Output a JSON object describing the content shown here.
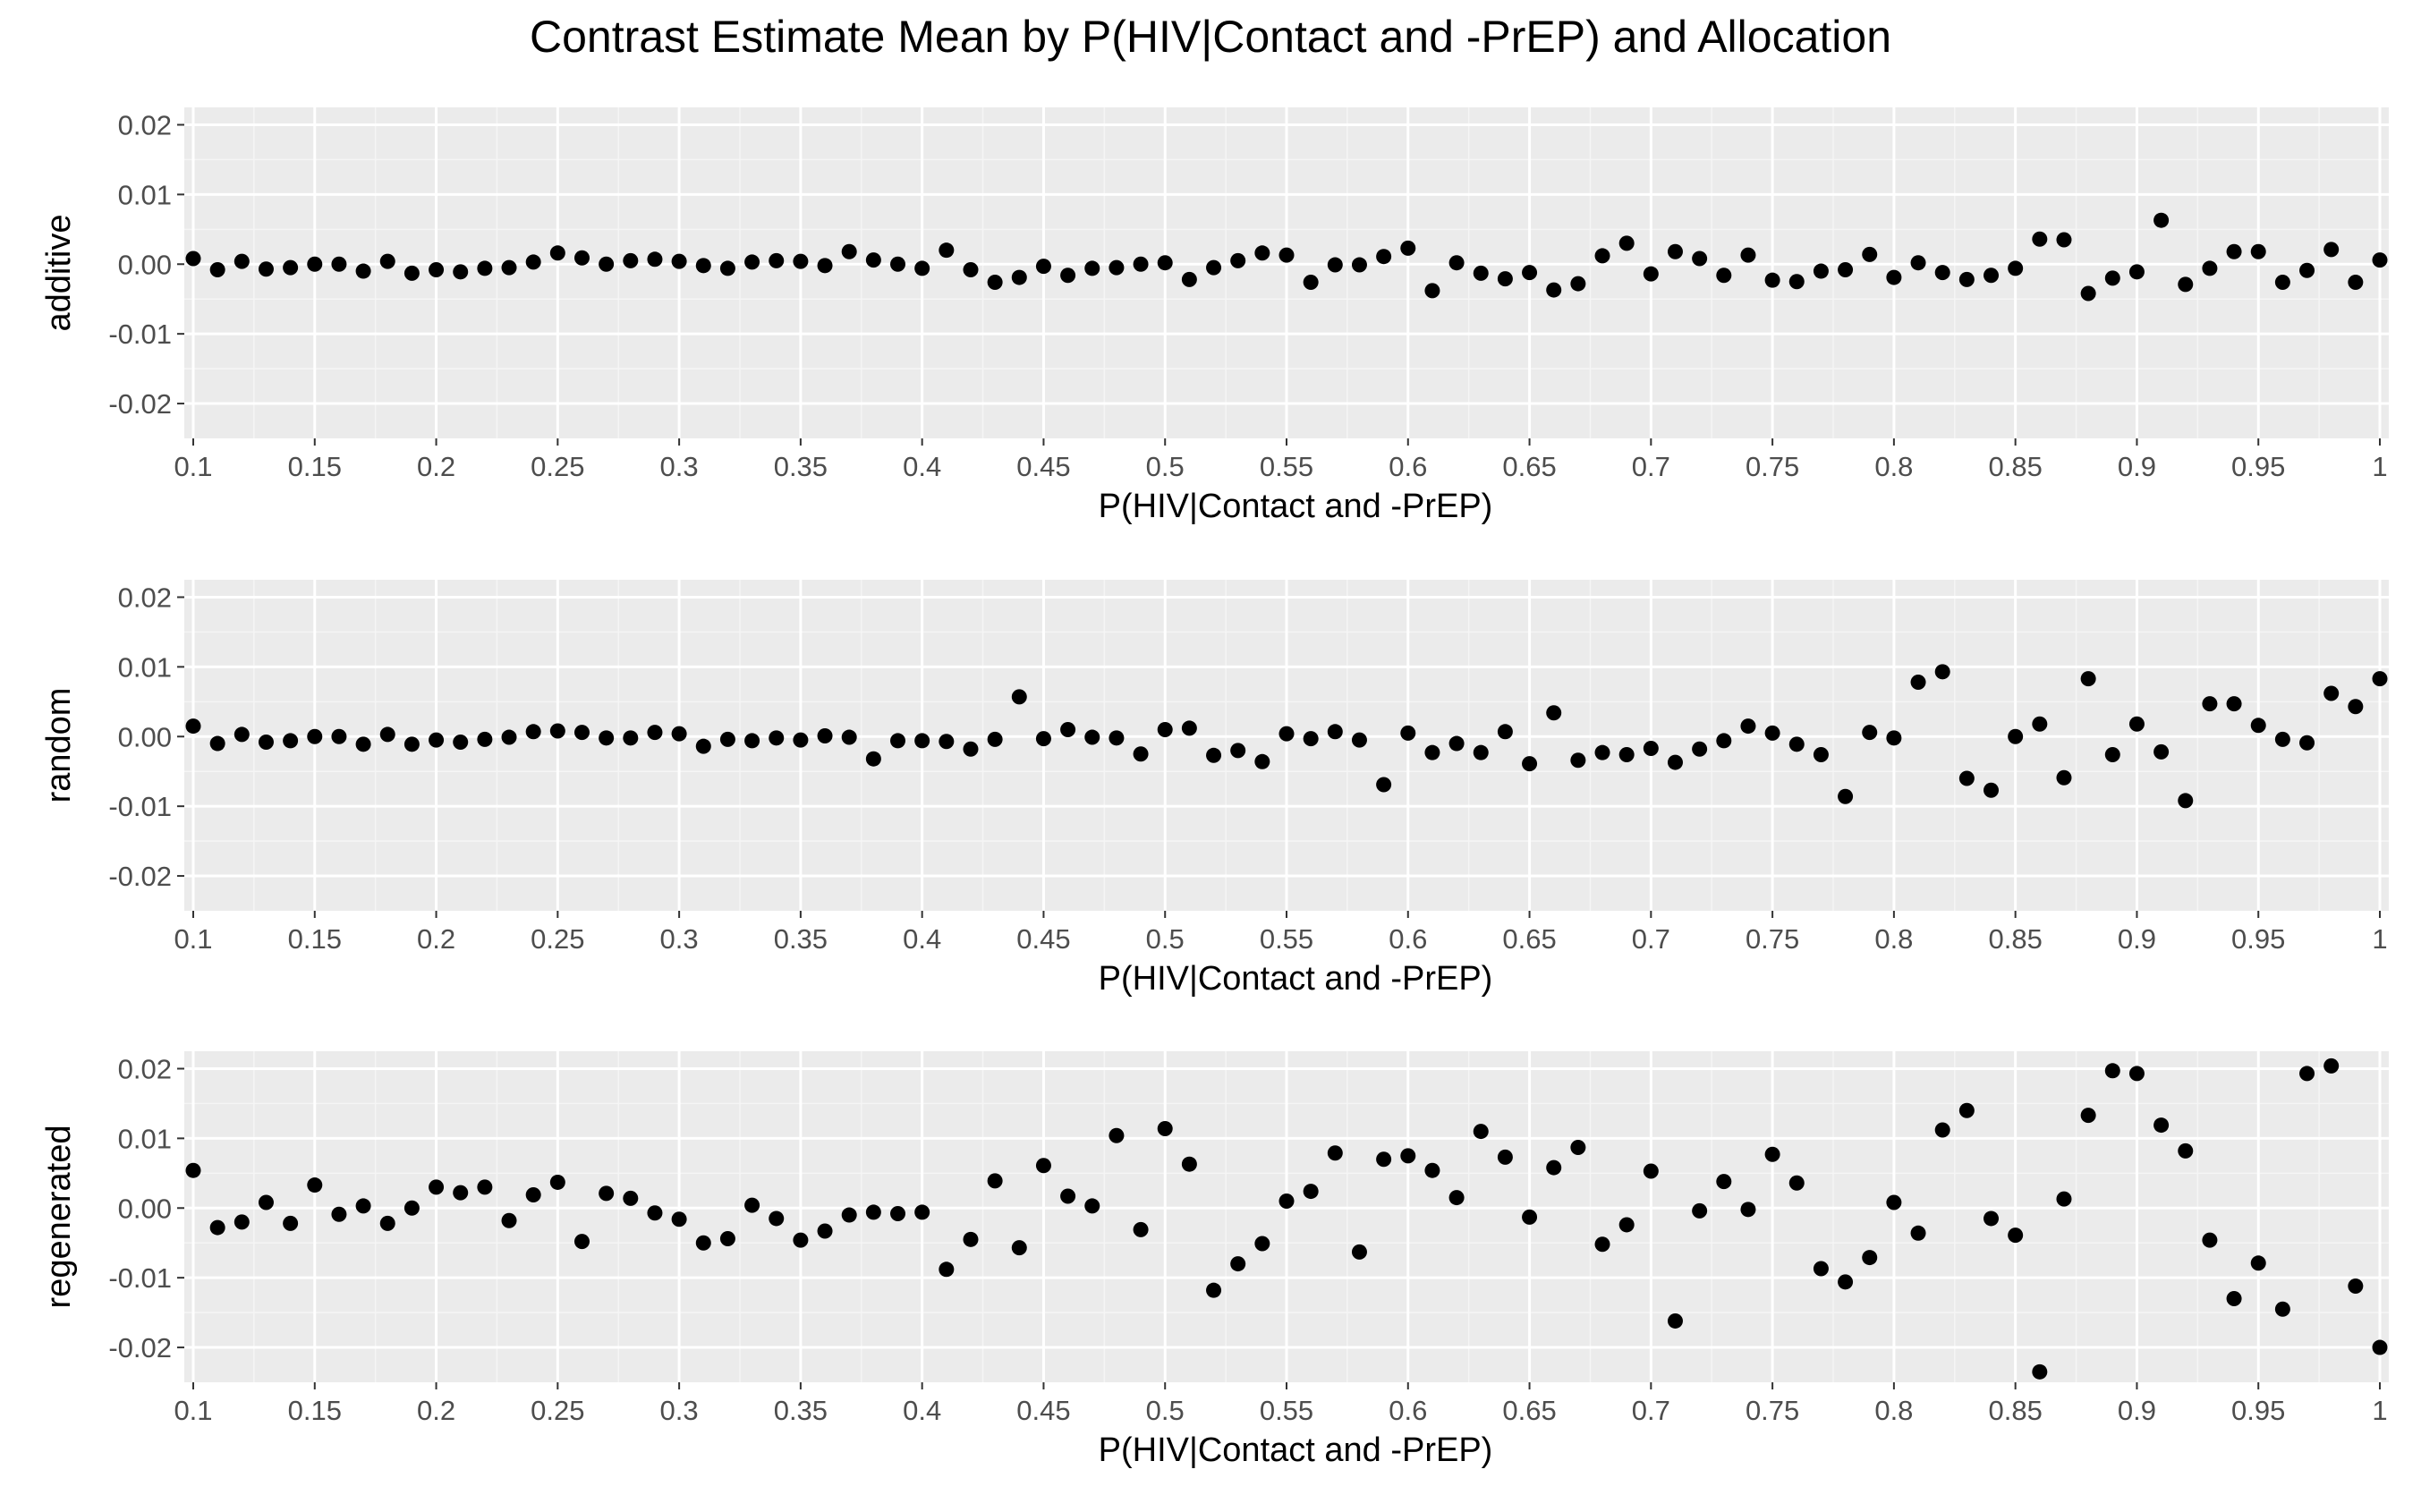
{
  "chart_data": {
    "type": "scatter",
    "title": "Contrast Estimate Mean by P(HIV|Contact and -PrEP) and Allocation",
    "xlabel": "P(HIV|Contact and -PrEP)",
    "xlim": [
      0.1,
      1.0
    ],
    "ylim": [
      -0.025,
      0.0225
    ],
    "grid": true,
    "x_tick_labels": [
      "0.1",
      "0.15",
      "0.2",
      "0.25",
      "0.3",
      "0.35",
      "0.4",
      "0.45",
      "0.5",
      "0.55",
      "0.6",
      "0.65",
      "0.7",
      "0.75",
      "0.8",
      "0.85",
      "0.9",
      "0.95",
      "1"
    ],
    "y_tick_labels": [
      "-0.02",
      "-0.01",
      "0.00",
      "0.01",
      "0.02"
    ],
    "x": [
      0.1,
      0.11,
      0.12,
      0.13,
      0.14,
      0.15,
      0.16,
      0.17,
      0.18,
      0.19,
      0.2,
      0.21,
      0.22,
      0.23,
      0.24,
      0.25,
      0.26,
      0.27,
      0.28,
      0.29,
      0.3,
      0.31,
      0.32,
      0.33,
      0.34,
      0.35,
      0.36,
      0.37,
      0.38,
      0.39,
      0.4,
      0.41,
      0.42,
      0.43,
      0.44,
      0.45,
      0.46,
      0.47,
      0.48,
      0.49,
      0.5,
      0.51,
      0.52,
      0.53,
      0.54,
      0.55,
      0.56,
      0.57,
      0.58,
      0.59,
      0.6,
      0.61,
      0.62,
      0.63,
      0.64,
      0.65,
      0.66,
      0.67,
      0.68,
      0.69,
      0.7,
      0.71,
      0.72,
      0.73,
      0.74,
      0.75,
      0.76,
      0.77,
      0.78,
      0.79,
      0.8,
      0.81,
      0.82,
      0.83,
      0.84,
      0.85,
      0.86,
      0.87,
      0.88,
      0.89,
      0.9,
      0.91,
      0.92,
      0.93,
      0.94,
      0.95,
      0.96,
      0.97,
      0.98,
      0.99,
      1.0
    ],
    "panels": [
      {
        "ylabel": "additive",
        "values": [
          0.0008,
          -0.0008,
          0.0004,
          -0.0007,
          -0.0005,
          0.0,
          0.0,
          -0.001,
          0.0004,
          -0.0013,
          -0.0008,
          -0.0011,
          -0.0006,
          -0.0005,
          0.0003,
          0.0016,
          0.0009,
          0.0,
          0.0005,
          0.0007,
          0.0004,
          -0.0002,
          -0.0006,
          0.0003,
          0.0005,
          0.0004,
          -0.0002,
          0.0018,
          0.0006,
          0.0,
          -0.0006,
          0.002,
          -0.0008,
          -0.0026,
          -0.0019,
          -0.0003,
          -0.0016,
          -0.0006,
          -0.0005,
          0.0,
          0.0002,
          -0.0022,
          -0.0005,
          0.0005,
          0.0016,
          0.0013,
          -0.0026,
          -0.0001,
          -0.0001,
          0.0011,
          0.0023,
          -0.0038,
          0.0002,
          -0.0013,
          -0.0021,
          -0.0012,
          -0.0037,
          -0.0028,
          0.0012,
          0.003,
          -0.0014,
          0.0018,
          0.0008,
          -0.0016,
          0.0013,
          -0.0023,
          -0.0025,
          -0.001,
          -0.0008,
          0.0014,
          -0.0019,
          0.0002,
          -0.0012,
          -0.0022,
          -0.0016,
          -0.0006,
          0.0036,
          0.0035,
          -0.0042,
          -0.002,
          -0.0011,
          0.0063,
          -0.0029,
          -0.0006,
          0.0018,
          0.0018,
          -0.0026,
          -0.0009,
          0.0021,
          -0.0026,
          0.0006
        ]
      },
      {
        "ylabel": "random",
        "values": [
          0.0015,
          -0.001,
          0.0003,
          -0.0008,
          -0.0006,
          0.0,
          0.0,
          -0.0011,
          0.0003,
          -0.0011,
          -0.0005,
          -0.0008,
          -0.0004,
          -0.0001,
          0.0007,
          0.0008,
          0.0006,
          -0.0002,
          -0.0002,
          0.0006,
          0.0004,
          -0.0014,
          -0.0004,
          -0.0006,
          -0.0002,
          -0.0005,
          0.0001,
          -0.0001,
          -0.0032,
          -0.0006,
          -0.0006,
          -0.0007,
          -0.0018,
          -0.0004,
          0.0057,
          -0.0003,
          0.001,
          -0.0001,
          -0.0002,
          -0.0025,
          0.001,
          0.0012,
          -0.0027,
          -0.002,
          -0.0036,
          0.0004,
          -0.0003,
          0.0007,
          -0.0005,
          -0.0069,
          0.0005,
          -0.0023,
          -0.001,
          -0.0023,
          0.0007,
          -0.0039,
          0.0034,
          -0.0034,
          -0.0023,
          -0.0026,
          -0.0017,
          -0.0037,
          -0.0018,
          -0.0006,
          0.0015,
          0.0005,
          -0.0011,
          -0.0026,
          -0.0086,
          0.0006,
          -0.0002,
          0.0078,
          0.0093,
          -0.006,
          -0.0077,
          0.0,
          0.0018,
          -0.0059,
          0.0083,
          -0.0026,
          0.0018,
          -0.0022,
          -0.0092,
          0.0047,
          0.0047,
          0.0016,
          -0.0004,
          -0.0009,
          0.0062,
          0.0043,
          0.0083
        ]
      },
      {
        "ylabel": "regenerated",
        "values": [
          0.0054,
          -0.0028,
          -0.002,
          0.0008,
          -0.0022,
          0.0033,
          -0.0009,
          0.0003,
          -0.0022,
          0.0,
          0.003,
          0.0022,
          0.003,
          -0.0018,
          0.0019,
          0.0037,
          -0.0048,
          0.0021,
          0.0014,
          -0.0007,
          -0.0016,
          -0.005,
          -0.0044,
          0.0004,
          -0.0015,
          -0.0046,
          -0.0033,
          -0.001,
          -0.0006,
          -0.0008,
          -0.0006,
          -0.0088,
          -0.0045,
          0.0039,
          -0.0057,
          0.0061,
          0.0017,
          0.0003,
          0.0104,
          -0.0031,
          0.0114,
          0.0063,
          -0.0118,
          -0.008,
          -0.0051,
          0.001,
          0.0024,
          0.0079,
          -0.0063,
          0.007,
          0.0075,
          0.0054,
          0.0015,
          0.011,
          0.0073,
          -0.0013,
          0.0058,
          0.0087,
          -0.0052,
          -0.0024,
          0.0053,
          -0.0162,
          -0.0004,
          0.0038,
          -0.0002,
          0.0077,
          0.0036,
          -0.0087,
          -0.0106,
          -0.0071,
          0.0008,
          -0.0036,
          0.0112,
          0.014,
          -0.0015,
          -0.0039,
          -0.0235,
          0.0013,
          0.0133,
          0.0197,
          0.0193,
          0.0119,
          0.0082,
          -0.0046,
          -0.013,
          -0.0079,
          -0.0145,
          0.0193,
          0.0204,
          -0.0112,
          -0.02
        ]
      }
    ]
  }
}
